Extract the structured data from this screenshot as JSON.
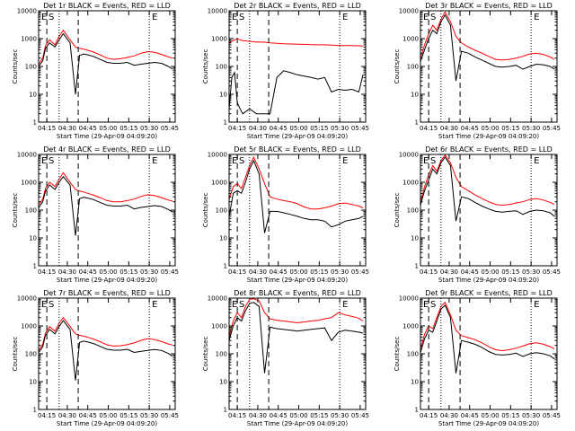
{
  "figure": {
    "xlabel": "Start Time (29-Apr-09 04:09:20)",
    "ylabel": "Counts/sec",
    "x_ticks": [
      "04:15",
      "04:30",
      "04:45",
      "05:00",
      "05:15",
      "05:30",
      "05:45"
    ],
    "y_ticks": [
      "1",
      "10",
      "100",
      "1000",
      "10000"
    ],
    "marker_labels": [
      "E",
      "S",
      "E"
    ],
    "colors": {
      "events": "#000000",
      "lld": "#ff0000",
      "frame": "#000000"
    }
  },
  "chart_data": [
    {
      "type": "line",
      "title": "Det 1r BLACK = Events, RED = LLD",
      "x_minutes": [
        0,
        3,
        5,
        8,
        12,
        15,
        18,
        23,
        27,
        30,
        33,
        36,
        40,
        45,
        50,
        55,
        60,
        65,
        70,
        75,
        80,
        85,
        90,
        95,
        98
      ],
      "xlim": [
        0,
        100
      ],
      "ylim": [
        1,
        10000
      ],
      "yscale": "log",
      "dashed_markers": [
        6,
        29
      ],
      "dotted_markers": [
        15,
        81
      ],
      "series": [
        {
          "name": "LLD",
          "color": "#ff0000",
          "values": [
            120,
            200,
            550,
            900,
            600,
            1200,
            2000,
            900,
            500,
            450,
            420,
            380,
            330,
            260,
            200,
            180,
            190,
            210,
            240,
            300,
            340,
            320,
            270,
            220,
            200
          ]
        },
        {
          "name": "Events",
          "color": "#000000",
          "values": [
            100,
            160,
            450,
            700,
            500,
            900,
            1500,
            700,
            10,
            250,
            280,
            260,
            230,
            180,
            140,
            130,
            130,
            140,
            110,
            120,
            130,
            140,
            130,
            100,
            80
          ]
        }
      ]
    },
    {
      "type": "line",
      "title": "Det 2r BLACK = Events, RED = LLD",
      "x_minutes": [
        0,
        2,
        4,
        6,
        8,
        10,
        15,
        20,
        25,
        30,
        35,
        40,
        45,
        50,
        55,
        60,
        65,
        70,
        75,
        80,
        85,
        90,
        95,
        98
      ],
      "xlim": [
        0,
        100
      ],
      "ylim": [
        1,
        10000
      ],
      "yscale": "log",
      "dashed_markers": [
        6,
        29
      ],
      "dotted_markers": [
        15,
        81
      ],
      "series": [
        {
          "name": "LLD",
          "color": "#ff0000",
          "values": [
            700,
            800,
            900,
            1000,
            900,
            850,
            800,
            750,
            750,
            700,
            680,
            650,
            640,
            630,
            620,
            610,
            600,
            600,
            580,
            570,
            560,
            560,
            550,
            540
          ]
        },
        {
          "name": "Events",
          "color": "#000000",
          "values": [
            3,
            40,
            60,
            5,
            3,
            2,
            3,
            2,
            2,
            2,
            40,
            70,
            60,
            50,
            45,
            40,
            35,
            40,
            12,
            15,
            14,
            15,
            12,
            50
          ]
        }
      ]
    },
    {
      "type": "line",
      "title": "Det 3r BLACK = Events, RED = LLD",
      "x_minutes": [
        0,
        3,
        6,
        9,
        12,
        15,
        18,
        22,
        26,
        30,
        35,
        40,
        45,
        50,
        55,
        60,
        65,
        70,
        75,
        80,
        85,
        90,
        95,
        98
      ],
      "xlim": [
        0,
        100
      ],
      "ylim": [
        1,
        10000
      ],
      "yscale": "log",
      "dashed_markers": [
        6,
        29
      ],
      "dotted_markers": [
        15,
        81
      ],
      "series": [
        {
          "name": "LLD",
          "color": "#ff0000",
          "values": [
            200,
            600,
            1500,
            3000,
            2000,
            5000,
            9000,
            4000,
            1200,
            700,
            500,
            380,
            300,
            230,
            180,
            170,
            180,
            200,
            230,
            280,
            300,
            270,
            220,
            180
          ]
        },
        {
          "name": "Events",
          "color": "#000000",
          "values": [
            150,
            400,
            1000,
            2000,
            1500,
            4000,
            7000,
            3000,
            30,
            350,
            300,
            220,
            170,
            130,
            100,
            95,
            100,
            110,
            80,
            100,
            120,
            115,
            100,
            80
          ]
        }
      ]
    },
    {
      "type": "line",
      "title": "Det 4r BLACK = Events, RED = LLD",
      "x_minutes": [
        0,
        3,
        5,
        8,
        12,
        15,
        18,
        23,
        27,
        30,
        33,
        36,
        40,
        45,
        50,
        55,
        60,
        65,
        70,
        75,
        80,
        85,
        90,
        95,
        98
      ],
      "xlim": [
        0,
        100
      ],
      "ylim": [
        1,
        10000
      ],
      "yscale": "log",
      "dashed_markers": [
        6,
        29
      ],
      "dotted_markers": [
        15,
        81
      ],
      "series": [
        {
          "name": "LLD",
          "color": "#ff0000",
          "values": [
            150,
            250,
            600,
            1000,
            700,
            1300,
            2200,
            1000,
            550,
            480,
            450,
            400,
            350,
            280,
            220,
            200,
            200,
            220,
            250,
            310,
            360,
            330,
            280,
            230,
            210
          ]
        },
        {
          "name": "Events",
          "color": "#000000",
          "values": [
            120,
            200,
            480,
            800,
            550,
            1000,
            1600,
            800,
            12,
            260,
            290,
            270,
            240,
            190,
            150,
            140,
            140,
            150,
            110,
            125,
            135,
            145,
            135,
            105,
            85
          ]
        }
      ]
    },
    {
      "type": "line",
      "title": "Det 5r BLACK = Events, RED = LLD",
      "x_minutes": [
        0,
        3,
        6,
        9,
        12,
        15,
        18,
        22,
        26,
        30,
        35,
        40,
        45,
        50,
        55,
        60,
        65,
        70,
        75,
        80,
        85,
        90,
        95,
        98
      ],
      "xlim": [
        0,
        100
      ],
      "ylim": [
        1,
        10000
      ],
      "yscale": "log",
      "dashed_markers": [
        6,
        29
      ],
      "dotted_markers": [
        15,
        81
      ],
      "series": [
        {
          "name": "LLD",
          "color": "#ff0000",
          "values": [
            250,
            700,
            900,
            600,
            1500,
            4000,
            8000,
            3000,
            900,
            300,
            250,
            220,
            200,
            170,
            130,
            110,
            110,
            120,
            140,
            170,
            180,
            160,
            140,
            120
          ]
        },
        {
          "name": "Events",
          "color": "#000000",
          "values": [
            60,
            400,
            500,
            400,
            1000,
            3000,
            6000,
            2000,
            15,
            90,
            90,
            80,
            70,
            60,
            50,
            45,
            45,
            40,
            25,
            30,
            40,
            45,
            50,
            60
          ]
        }
      ]
    },
    {
      "type": "line",
      "title": "Det 6r BLACK = Events, RED = LLD",
      "x_minutes": [
        0,
        3,
        6,
        9,
        12,
        15,
        18,
        22,
        26,
        30,
        35,
        40,
        45,
        50,
        55,
        60,
        65,
        70,
        75,
        80,
        85,
        90,
        95,
        98
      ],
      "xlim": [
        0,
        100
      ],
      "ylim": [
        1,
        10000
      ],
      "yscale": "log",
      "dashed_markers": [
        6,
        29
      ],
      "dotted_markers": [
        15,
        81
      ],
      "series": [
        {
          "name": "LLD",
          "color": "#ff0000",
          "values": [
            200,
            700,
            1800,
            4000,
            2500,
            6000,
            9500,
            5000,
            1500,
            700,
            500,
            350,
            260,
            200,
            160,
            150,
            160,
            180,
            200,
            240,
            260,
            230,
            190,
            160
          ]
        },
        {
          "name": "Events",
          "color": "#000000",
          "values": [
            150,
            500,
            1200,
            3000,
            2000,
            5000,
            8000,
            4000,
            40,
            300,
            260,
            190,
            140,
            110,
            90,
            85,
            90,
            95,
            70,
            90,
            100,
            95,
            80,
            60
          ]
        }
      ]
    },
    {
      "type": "line",
      "title": "Det 7r BLACK = Events, RED = LLD",
      "x_minutes": [
        0,
        3,
        5,
        8,
        12,
        15,
        18,
        23,
        27,
        30,
        33,
        36,
        40,
        45,
        50,
        55,
        60,
        65,
        70,
        75,
        80,
        85,
        90,
        95,
        98
      ],
      "xlim": [
        0,
        100
      ],
      "ylim": [
        1,
        10000
      ],
      "yscale": "log",
      "dashed_markers": [
        6,
        29
      ],
      "dotted_markers": [
        15,
        81
      ],
      "series": [
        {
          "name": "LLD",
          "color": "#ff0000",
          "values": [
            130,
            220,
            550,
            950,
            650,
            1250,
            2000,
            950,
            520,
            460,
            430,
            390,
            340,
            270,
            210,
            190,
            195,
            215,
            245,
            305,
            350,
            325,
            275,
            225,
            205
          ]
        },
        {
          "name": "Events",
          "color": "#000000",
          "values": [
            110,
            180,
            460,
            750,
            520,
            950,
            1550,
            750,
            11,
            255,
            285,
            265,
            235,
            185,
            145,
            135,
            135,
            145,
            112,
            122,
            132,
            142,
            132,
            102,
            82
          ]
        }
      ]
    },
    {
      "type": "line",
      "title": "Det 8r BLACK = Events, RED = LLD",
      "x_minutes": [
        0,
        3,
        6,
        9,
        12,
        15,
        18,
        22,
        26,
        30,
        35,
        40,
        45,
        50,
        55,
        60,
        65,
        70,
        75,
        80,
        85,
        90,
        95,
        98
      ],
      "xlim": [
        0,
        100
      ],
      "ylim": [
        1,
        10000
      ],
      "yscale": "log",
      "dashed_markers": [
        6,
        29
      ],
      "dotted_markers": [
        15,
        81
      ],
      "series": [
        {
          "name": "LLD",
          "color": "#ff0000",
          "values": [
            400,
            1500,
            3000,
            2000,
            5000,
            9000,
            9500,
            8000,
            3000,
            1800,
            1600,
            1500,
            1400,
            1300,
            1400,
            1500,
            1600,
            1800,
            2000,
            3000,
            2500,
            2200,
            1900,
            1500
          ]
        },
        {
          "name": "Events",
          "color": "#000000",
          "values": [
            300,
            1000,
            2000,
            1500,
            3500,
            6500,
            7000,
            5000,
            20,
            900,
            800,
            750,
            700,
            650,
            700,
            750,
            800,
            850,
            300,
            600,
            700,
            650,
            600,
            550
          ]
        }
      ]
    },
    {
      "type": "line",
      "title": "Det 9r BLACK = Events, RED = LLD",
      "x_minutes": [
        0,
        3,
        6,
        9,
        12,
        15,
        18,
        22,
        26,
        30,
        35,
        40,
        45,
        50,
        55,
        60,
        65,
        70,
        75,
        80,
        85,
        90,
        95,
        98
      ],
      "xlim": [
        0,
        100
      ],
      "ylim": [
        1,
        10000
      ],
      "yscale": "log",
      "dashed_markers": [
        6,
        29
      ],
      "dotted_markers": [
        15,
        81
      ],
      "series": [
        {
          "name": "LLD",
          "color": "#ff0000",
          "values": [
            150,
            500,
            1000,
            800,
            2000,
            5000,
            7000,
            2500,
            700,
            450,
            380,
            320,
            250,
            180,
            140,
            130,
            140,
            160,
            190,
            230,
            250,
            220,
            180,
            150
          ]
        },
        {
          "name": "Events",
          "color": "#000000",
          "values": [
            110,
            350,
            700,
            600,
            1500,
            4000,
            5500,
            2000,
            20,
            300,
            260,
            220,
            170,
            120,
            95,
            90,
            95,
            105,
            80,
            100,
            110,
            100,
            85,
            65
          ]
        }
      ]
    }
  ]
}
